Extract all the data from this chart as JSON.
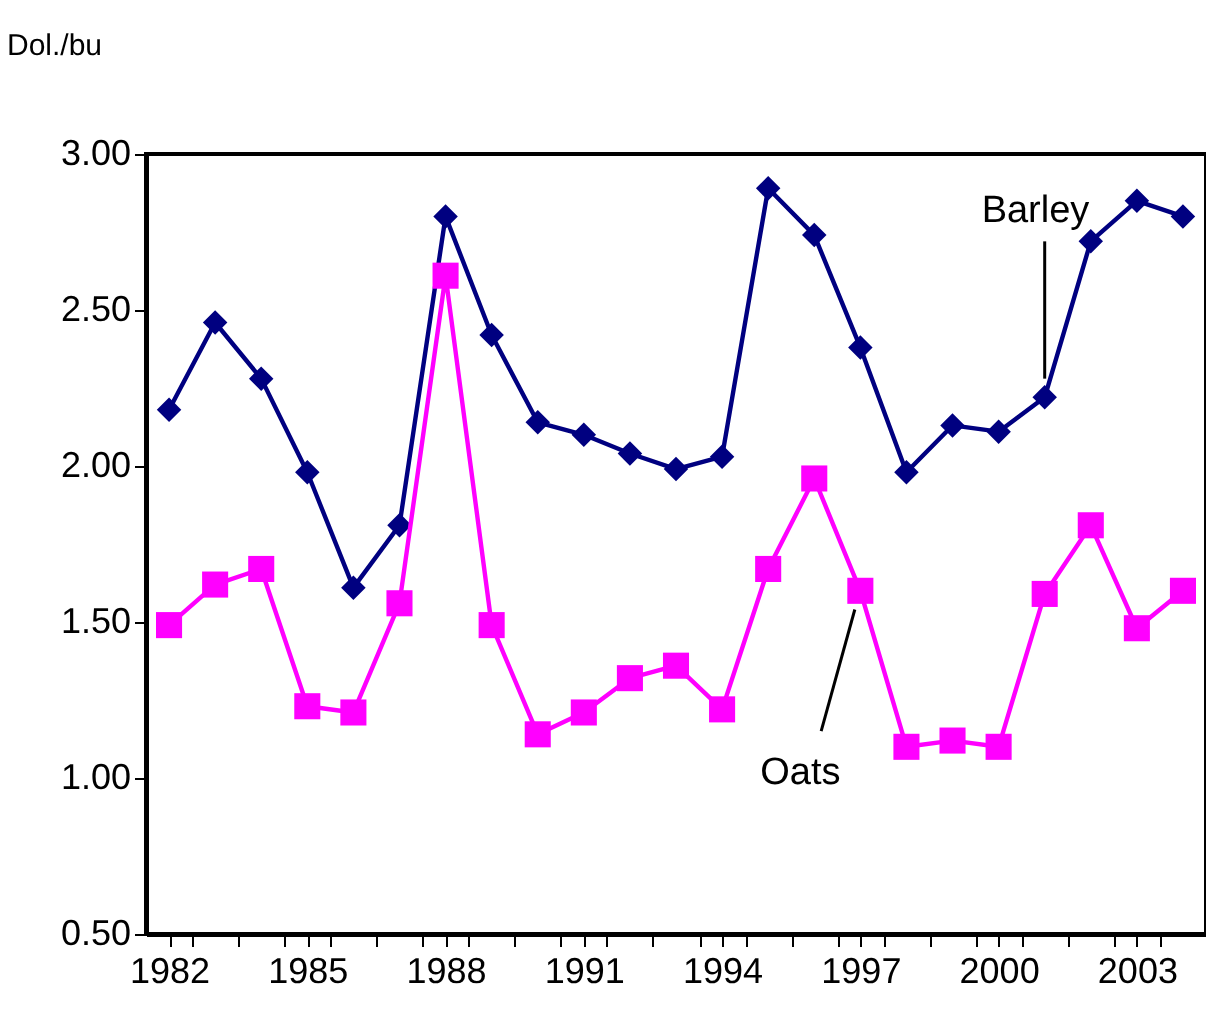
{
  "chart_data": {
    "type": "line",
    "ylabel": "Dol./bu",
    "x": [
      1982,
      1983,
      1984,
      1985,
      1986,
      1987,
      1988,
      1989,
      1990,
      1991,
      1992,
      1993,
      1994,
      1995,
      1996,
      1997,
      1998,
      1999,
      2000,
      2001,
      2002,
      2003,
      2004
    ],
    "series": [
      {
        "name": "Barley",
        "color": "#000080",
        "marker": "diamond",
        "values": [
          2.18,
          2.46,
          2.28,
          1.98,
          1.61,
          1.81,
          2.8,
          2.42,
          2.14,
          2.1,
          2.04,
          1.99,
          2.03,
          2.89,
          2.74,
          2.38,
          1.98,
          2.13,
          2.11,
          2.22,
          2.72,
          2.85,
          2.8
        ]
      },
      {
        "name": "Oats",
        "color": "#ff00ff",
        "marker": "square",
        "values": [
          1.49,
          1.62,
          1.67,
          1.23,
          1.21,
          1.56,
          2.61,
          1.49,
          1.14,
          1.21,
          1.32,
          1.36,
          1.22,
          1.67,
          1.96,
          1.6,
          1.1,
          1.12,
          1.1,
          1.59,
          1.81,
          1.48,
          1.6
        ]
      }
    ],
    "xlim": [
      1981.5,
      2004.5
    ],
    "xticks": [
      {
        "value": 1982,
        "label": "1982"
      },
      {
        "value": 1982.5,
        "label": null
      },
      {
        "value": 1983.5,
        "label": null
      },
      {
        "value": 1984.5,
        "label": null
      },
      {
        "value": 1985,
        "label": "1985"
      },
      {
        "value": 1985.5,
        "label": null
      },
      {
        "value": 1986.5,
        "label": null
      },
      {
        "value": 1987.5,
        "label": null
      },
      {
        "value": 1988,
        "label": "1988"
      },
      {
        "value": 1988.5,
        "label": null
      },
      {
        "value": 1989.5,
        "label": null
      },
      {
        "value": 1990.5,
        "label": null
      },
      {
        "value": 1991,
        "label": "1991"
      },
      {
        "value": 1991.5,
        "label": null
      },
      {
        "value": 1992.5,
        "label": null
      },
      {
        "value": 1993.5,
        "label": null
      },
      {
        "value": 1994,
        "label": "1994"
      },
      {
        "value": 1994.5,
        "label": null
      },
      {
        "value": 1995.5,
        "label": null
      },
      {
        "value": 1996.5,
        "label": null
      },
      {
        "value": 1997,
        "label": "1997"
      },
      {
        "value": 1997.5,
        "label": null
      },
      {
        "value": 1998.5,
        "label": null
      },
      {
        "value": 1999.5,
        "label": null
      },
      {
        "value": 2000,
        "label": "2000"
      },
      {
        "value": 2000.5,
        "label": null
      },
      {
        "value": 2001.5,
        "label": null
      },
      {
        "value": 2002.5,
        "label": null
      },
      {
        "value": 2003,
        "label": "2003"
      },
      {
        "value": 2003.5,
        "label": null
      }
    ],
    "ylim": [
      0.5,
      3.0
    ],
    "yticks": [
      {
        "value": 0.5,
        "label": "0.50"
      },
      {
        "value": 1.0,
        "label": "1.00"
      },
      {
        "value": 1.5,
        "label": "1.50"
      },
      {
        "value": 2.0,
        "label": "2.00"
      },
      {
        "value": 2.5,
        "label": "2.50"
      },
      {
        "value": 3.0,
        "label": "3.00"
      }
    ],
    "grid": false
  }
}
